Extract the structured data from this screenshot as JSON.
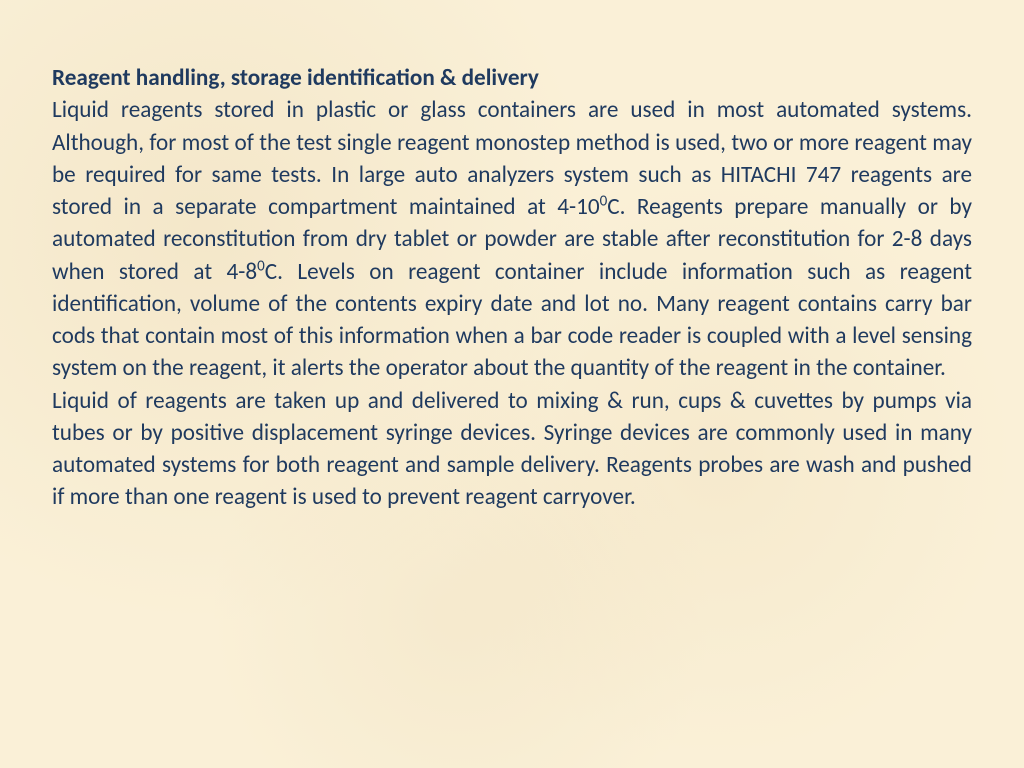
{
  "slide": {
    "background_color": "#faf0d7",
    "text_color": "#1f3a5f",
    "heading_color": "#1f3a5f",
    "font_family": "Calibri",
    "font_size_pt": 18,
    "heading_weight": "bold",
    "alignment": "justify",
    "heading": "Reagent handling, storage identification & delivery",
    "para1_a": "Liquid reagents stored in plastic or glass containers are used in most automated systems. Although, for most of the test single reagent monostep method is used, two or more reagent may be required for same tests. In large auto analyzers system such as HITACHI 747 reagents are stored in a separate compartment maintained at 4-10",
    "sup1": "0",
    "para1_b": "C. Reagents prepare manually or by automated reconstitution from dry tablet or powder are stable after reconstitution for 2-8 days when stored at 4-8",
    "sup2": "0",
    "para1_c": "C. Levels on reagent container include information such as reagent identification, volume of the contents  expiry date and lot no. Many reagent contains carry bar cods that contain most of this information when a bar code reader is coupled with a level sensing system on the reagent, it alerts the operator about the quantity of the reagent in the container.",
    "para2": "Liquid of reagents are taken up and delivered to mixing & run, cups & cuvettes by pumps via tubes or by positive displacement syringe devices. Syringe devices are commonly used in many automated systems for both reagent and sample delivery. Reagents probes are wash and pushed if more than one reagent is used to prevent reagent carryover."
  }
}
